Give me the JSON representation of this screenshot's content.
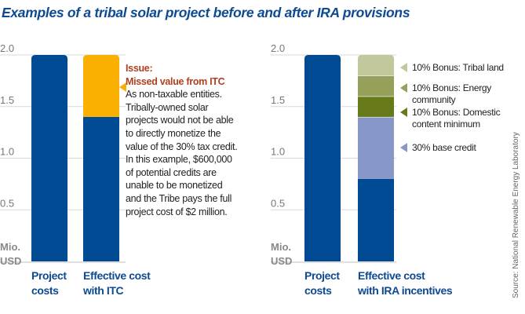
{
  "title": "Examples of a tribal solar project before and after IRA provisions",
  "source": "Source: National Renewable Energy Laboratory",
  "chart_data": [
    {
      "type": "bar",
      "stacked": true,
      "ylabel": "Mio. USD",
      "ylim": [
        0,
        2.0
      ],
      "yticks": [
        "0.5",
        "1.0",
        "1.5",
        "2.0"
      ],
      "grid": true,
      "categories": [
        "Project costs",
        "Effective cost with ITC"
      ],
      "series": [
        {
          "values": [
            2.0,
            1.4
          ],
          "color": "#004a94"
        },
        {
          "name": "Missed value from ITC",
          "values": [
            0,
            0.6
          ],
          "color": "#f9b000"
        }
      ],
      "annotation": {
        "heading": "Issue:",
        "subheading": "Missed value from ITC",
        "text": [
          "As non-taxable entities.",
          "Tribally-owned solar",
          "projects would not be able",
          "to directly monetize the",
          "value of the 30% tax credit.",
          "In this example, $600,000",
          "of potential credits are",
          "unable to be monetized",
          "and the Tribe pays the full",
          "project cost of $2 million."
        ]
      }
    },
    {
      "type": "bar",
      "stacked": true,
      "ylabel": "Mio. USD",
      "ylim": [
        0,
        2.0
      ],
      "yticks": [
        "0.5",
        "1.0",
        "1.5",
        "2.0"
      ],
      "grid": true,
      "categories": [
        "Project costs",
        "Effective cost with IRA incentives"
      ],
      "series": [
        {
          "values": [
            2.0,
            0.8
          ],
          "color": "#004a94"
        },
        {
          "name": "30% base credit",
          "values": [
            0,
            0.6
          ],
          "color": "#8798c8"
        },
        {
          "name": "10% Bonus: Domestic content minimum",
          "values": [
            0,
            0.2
          ],
          "color": "#667a1a"
        },
        {
          "name": "10% Bonus: Energy community",
          "values": [
            0,
            0.2
          ],
          "color": "#97a05a"
        },
        {
          "name": "10% Bonus: Tribal land",
          "values": [
            0,
            0.2
          ],
          "color": "#c2c79c"
        }
      ]
    }
  ],
  "categories_display": [
    [
      "Project",
      "costs"
    ],
    [
      "Effective cost",
      "with ITC"
    ],
    [
      "Project",
      "costs"
    ],
    [
      "Effective cost",
      "with IRA incentives"
    ]
  ],
  "legend_display": [
    [
      "10% Bonus: Tribal land"
    ],
    [
      "10% Bonus: Energy",
      "community"
    ],
    [
      "10% Bonus: Domestic",
      "content minimum"
    ],
    [
      "30% base credit"
    ]
  ],
  "ylabel_lines": [
    "Mio.",
    "USD"
  ]
}
